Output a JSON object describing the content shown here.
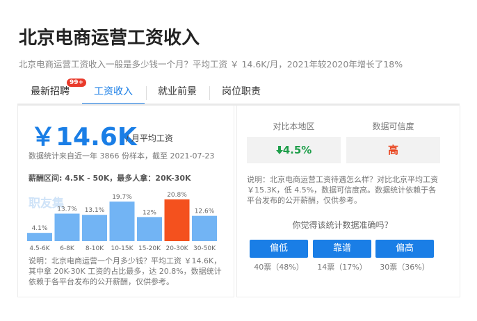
{
  "header": {
    "title": "北京电商运营工资收入",
    "subtitle": "北京电商运营工资收入一般是多少钱一个月？平均工资 ￥ 14.6K/月，2021年较2020年增长了18%"
  },
  "tabs": [
    {
      "label": "最新招聘",
      "badge": "99+"
    },
    {
      "label": "工资收入"
    },
    {
      "label": "就业前景"
    },
    {
      "label": "岗位职责"
    }
  ],
  "left": {
    "salary": "￥14.6K",
    "salary_unit": "/ 月平均工资",
    "sample": "数据统计来自近一年 3866 份样本，截至 2021-07-23",
    "range": "薪酬区间: 4.5K - 50K，最多人拿：20K-30K",
    "watermark": "职友集",
    "chart": {
      "type": "bar",
      "categories": [
        "4.5-6K",
        "6-8K",
        "8-10K",
        "10-15K",
        "15-20K",
        "20-30K",
        "30-50K"
      ],
      "values": [
        4.1,
        13.7,
        13.1,
        19.7,
        12,
        20.8,
        12.6
      ],
      "value_labels": [
        "4.1%",
        "13.7%",
        "13.1%",
        "19.7%",
        "12%",
        "20.8%",
        "12.6%"
      ],
      "colors": [
        "#72b4f4",
        "#72b4f4",
        "#72b4f4",
        "#72b4f4",
        "#72b4f4",
        "#f4511e",
        "#72b4f4"
      ]
    },
    "note": "说明：北京电商运营一个月多少钱？平均工资 ￥14.6K，其中拿 20K-30K 工资的占比最多，达 20.8%，数据统计依赖于各平台发布的公开薪酬，仅供参考。"
  },
  "right": {
    "compare_label": "对比本地区",
    "trust_label": "数据可信度",
    "compare_value": "4.5%",
    "trust_value": "高",
    "note": "说明：北京电商运营工资待遇怎么样？对比北京平均工资 ￥15.3K，低 4.5%，数据可信度高。数据统计依赖于各平台发布的公开薪酬，仅供参考。",
    "question": "你觉得该统计数据准确吗？",
    "buttons": [
      {
        "label": "偏低",
        "votes": "40票（48%）"
      },
      {
        "label": "靠谱",
        "votes": "14票（17%）"
      },
      {
        "label": "偏高",
        "votes": "30票（36%）"
      }
    ]
  }
}
